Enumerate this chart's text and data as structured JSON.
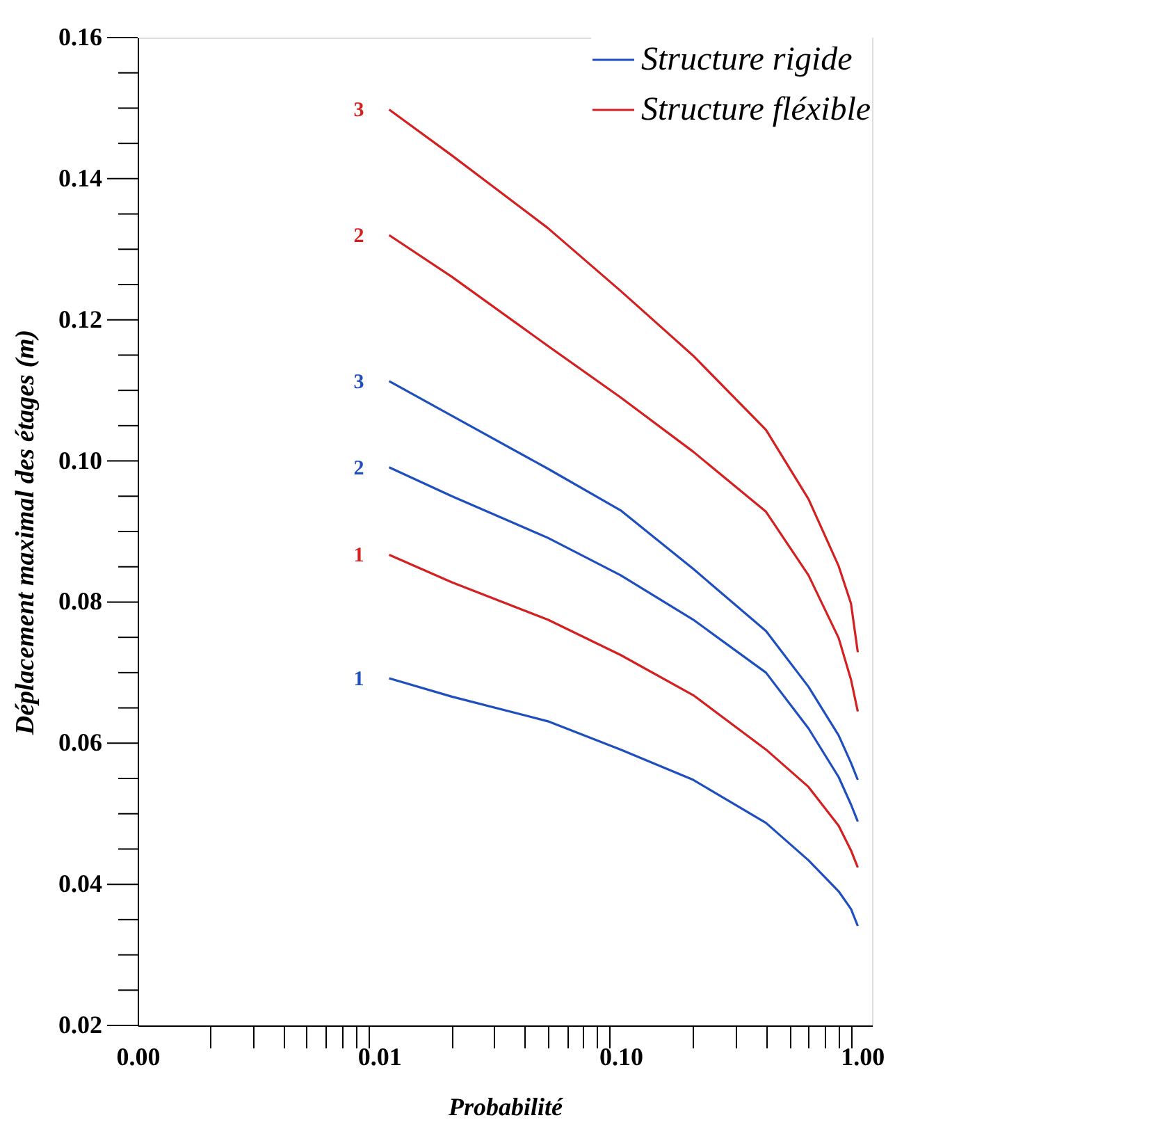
{
  "chart_data": {
    "type": "line",
    "log": "x",
    "xlabel": "Probabilité",
    "ylabel": "Déplacement maximal des étages (m)",
    "x": [
      0.011,
      0.02,
      0.05,
      0.1,
      0.2,
      0.4,
      0.6,
      0.8,
      0.9,
      0.96
    ],
    "xlim": [
      0.001,
      1.1
    ],
    "xticks": [
      {
        "value": 0.001,
        "label": "0.00"
      },
      {
        "value": 0.002,
        "label": null
      },
      {
        "value": 0.003,
        "label": null
      },
      {
        "value": 0.004,
        "label": null
      },
      {
        "value": 0.005,
        "label": null
      },
      {
        "value": 0.006,
        "label": null
      },
      {
        "value": 0.007,
        "label": null
      },
      {
        "value": 0.008,
        "label": null
      },
      {
        "value": 0.009,
        "label": null
      },
      {
        "value": 0.01,
        "label": "0.01"
      },
      {
        "value": 0.02,
        "label": null
      },
      {
        "value": 0.03,
        "label": null
      },
      {
        "value": 0.04,
        "label": null
      },
      {
        "value": 0.05,
        "label": null
      },
      {
        "value": 0.06,
        "label": null
      },
      {
        "value": 0.07,
        "label": null
      },
      {
        "value": 0.08,
        "label": null
      },
      {
        "value": 0.09,
        "label": null
      },
      {
        "value": 0.1,
        "label": "0.10"
      },
      {
        "value": 0.2,
        "label": null
      },
      {
        "value": 0.3,
        "label": null
      },
      {
        "value": 0.4,
        "label": null
      },
      {
        "value": 0.5,
        "label": null
      },
      {
        "value": 0.6,
        "label": null
      },
      {
        "value": 0.7,
        "label": null
      },
      {
        "value": 0.8,
        "label": null
      },
      {
        "value": 0.9,
        "label": null
      },
      {
        "value": 1.0,
        "label": "1.00"
      }
    ],
    "ylim": [
      0.02,
      0.16
    ],
    "yticks": [
      0.02,
      {
        "value": 0.025,
        "label": null
      },
      {
        "value": 0.03,
        "label": null
      },
      {
        "value": 0.035,
        "label": null
      },
      0.04,
      {
        "value": 0.045,
        "label": null
      },
      {
        "value": 0.05,
        "label": null
      },
      {
        "value": 0.055,
        "label": null
      },
      0.06,
      {
        "value": 0.065,
        "label": null
      },
      {
        "value": 0.07,
        "label": null
      },
      {
        "value": 0.075,
        "label": null
      },
      0.08,
      {
        "value": 0.085,
        "label": null
      },
      {
        "value": 0.09,
        "label": null
      },
      {
        "value": 0.095,
        "label": null
      },
      {
        "value": 0.1,
        "label": "0.10"
      },
      {
        "value": 0.105,
        "label": null
      },
      {
        "value": 0.11,
        "label": null
      },
      {
        "value": 0.115,
        "label": null
      },
      0.12,
      {
        "value": 0.125,
        "label": null
      },
      {
        "value": 0.13,
        "label": null
      },
      {
        "value": 0.135,
        "label": null
      },
      0.14,
      {
        "value": 0.145,
        "label": null
      },
      {
        "value": 0.15,
        "label": null
      },
      {
        "value": 0.155,
        "label": null
      },
      0.16
    ],
    "grid": false,
    "legend": "top right",
    "marker": "none",
    "line_style": "solid",
    "series": [
      {
        "name": "Structure rigide",
        "color": "#1f4fbf",
        "values": [
          0.0692,
          0.0666,
          0.0631,
          0.0591,
          0.0548,
          0.0487,
          0.0434,
          0.039,
          0.0365,
          0.0341
        ]
      },
      {
        "color": "#1f4fbf",
        "values": [
          0.0991,
          0.095,
          0.0891,
          0.0838,
          0.0775,
          0.07,
          0.0621,
          0.0552,
          0.0513,
          0.0489
        ]
      },
      {
        "color": "#1f4fbf",
        "values": [
          0.1113,
          0.1064,
          0.0989,
          0.093,
          0.0847,
          0.0759,
          0.068,
          0.0611,
          0.0572,
          0.0548
        ]
      },
      {
        "name": "Structure fléxible",
        "color": "#d42020",
        "values": [
          0.0867,
          0.0828,
          0.0775,
          0.0725,
          0.0668,
          0.0591,
          0.0538,
          0.0483,
          0.0448,
          0.0424
        ]
      },
      {
        "color": "#d42020",
        "values": [
          0.132,
          0.1261,
          0.1163,
          0.109,
          0.1013,
          0.0928,
          0.0838,
          0.0749,
          0.069,
          0.0645
        ]
      },
      {
        "color": "#d42020",
        "values": [
          0.1498,
          0.1433,
          0.133,
          0.1241,
          0.1149,
          0.1044,
          0.0946,
          0.0851,
          0.0798,
          0.0729
        ]
      }
    ],
    "annotations": [
      "1",
      "2",
      "3",
      "1",
      "2",
      "3"
    ]
  }
}
